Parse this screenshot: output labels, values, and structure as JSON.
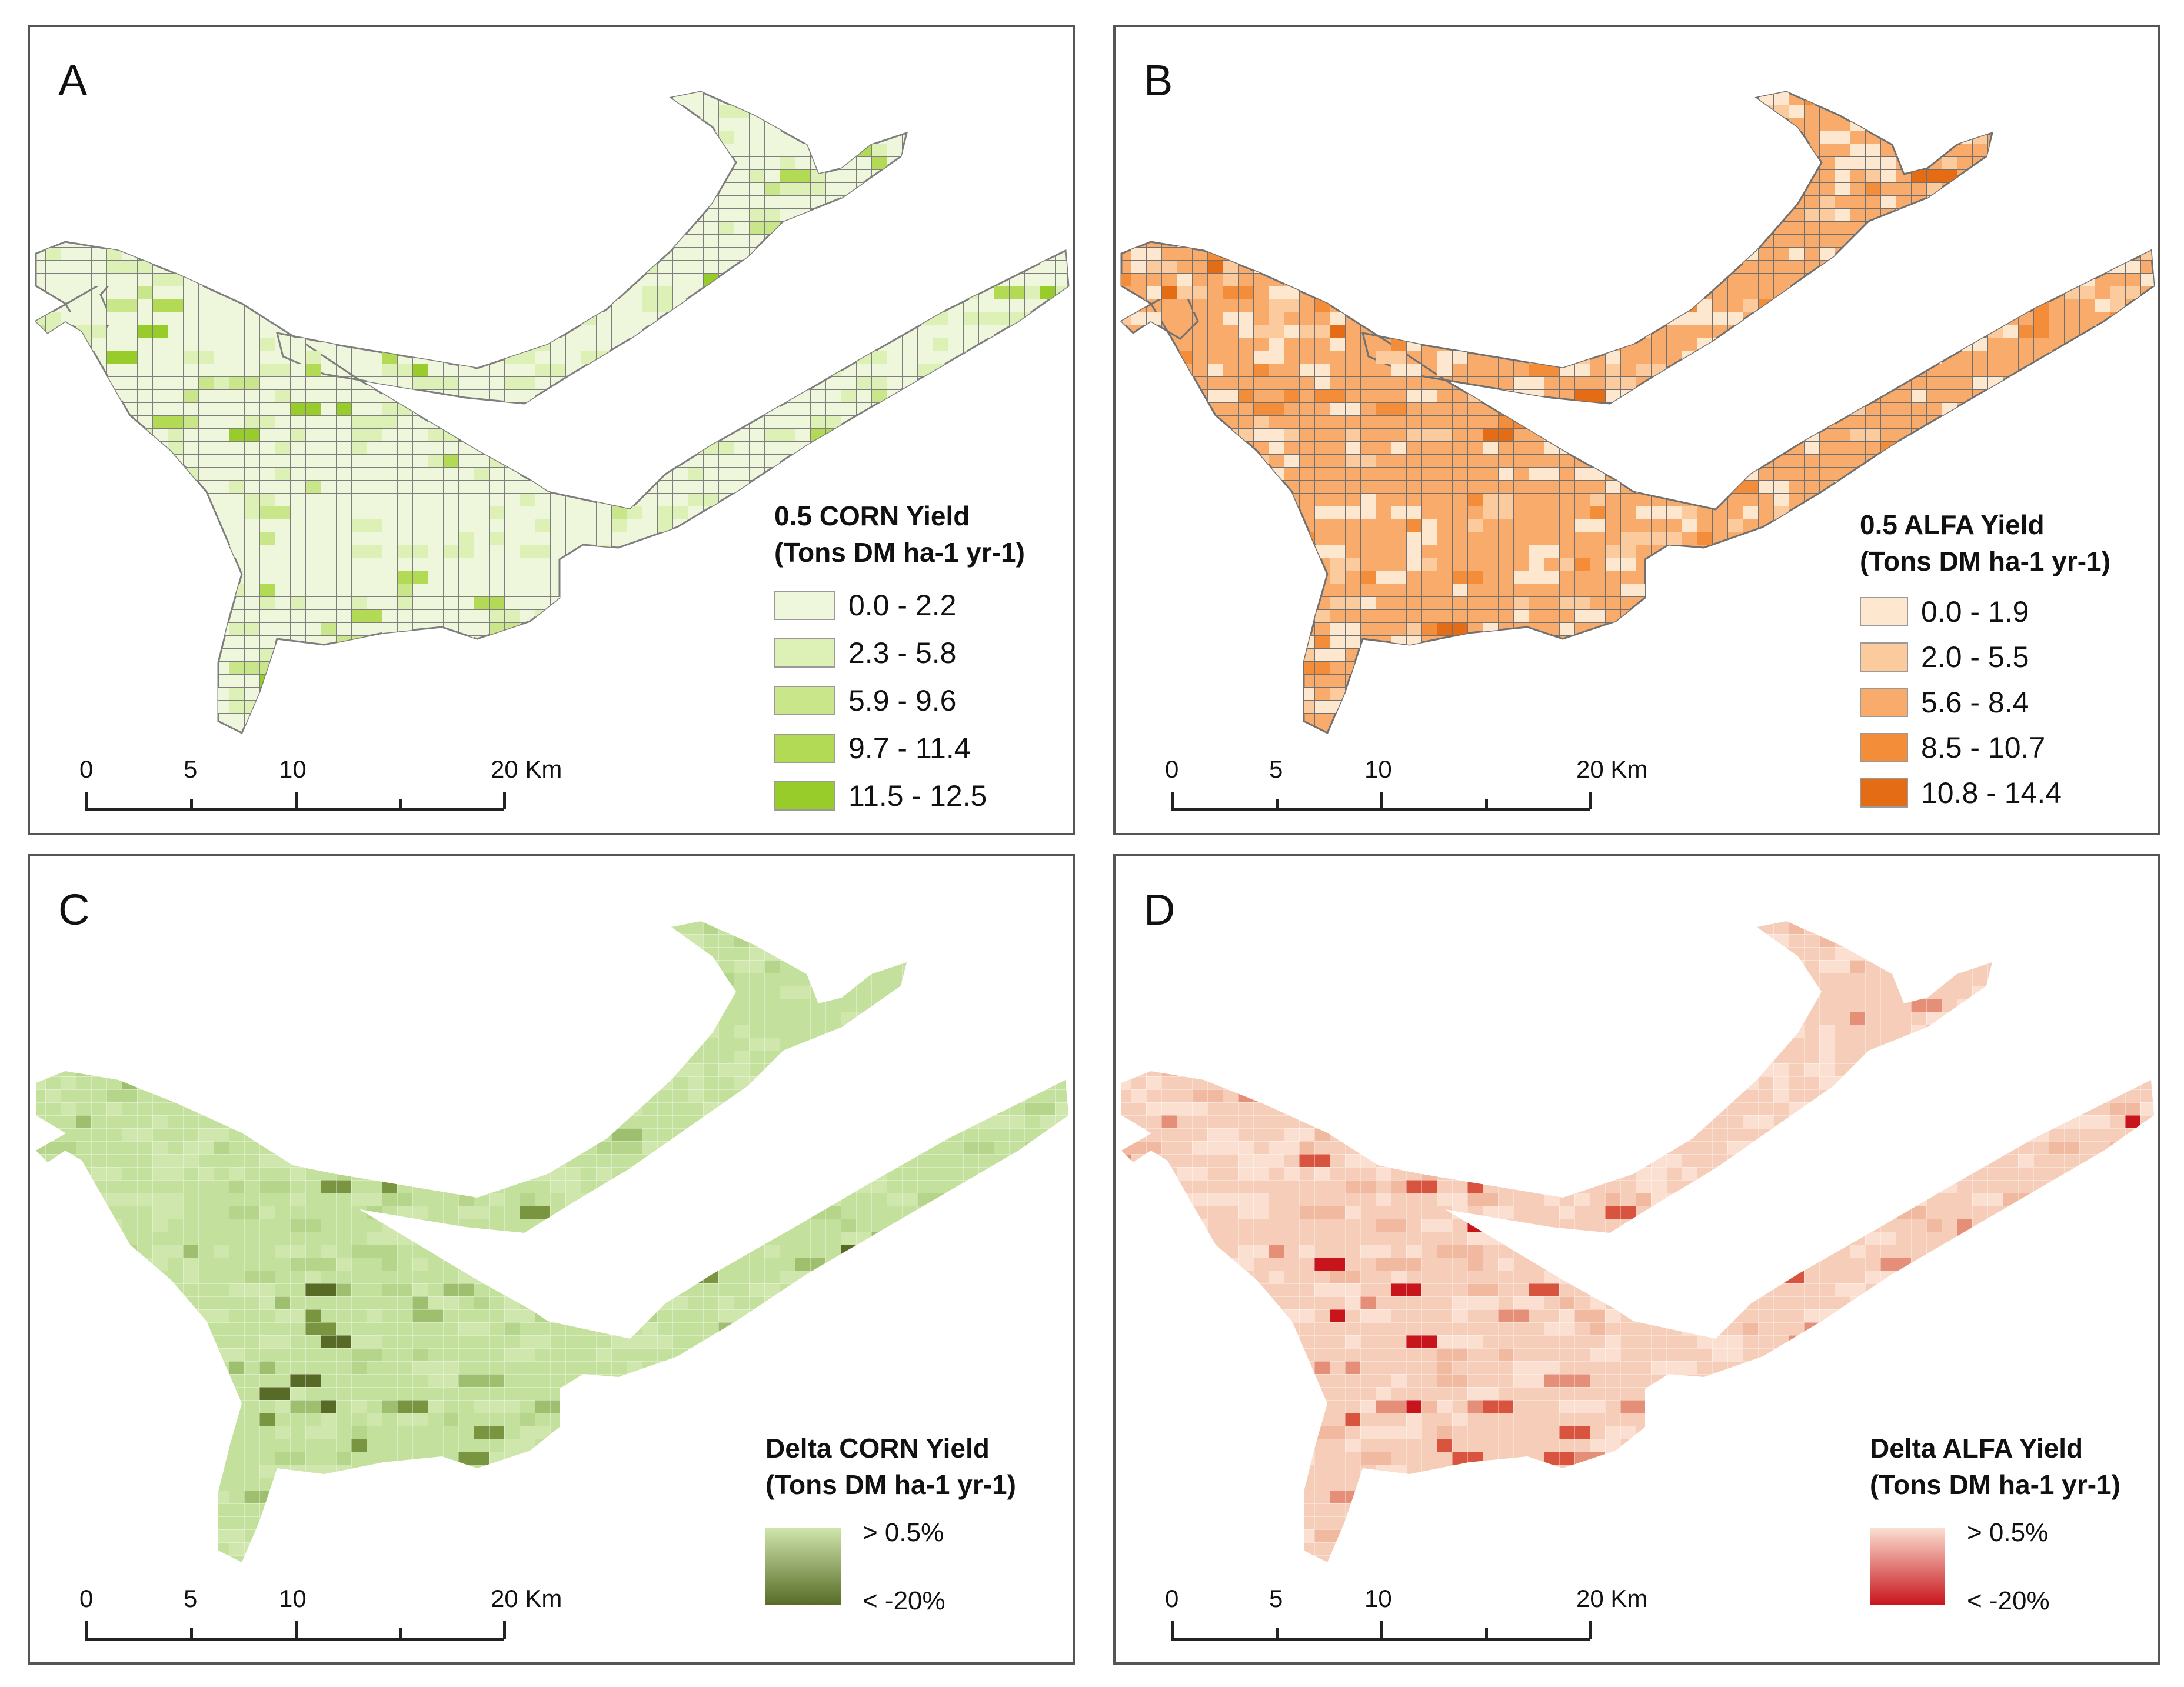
{
  "figure": {
    "panels": [
      {
        "id": "A",
        "letter": "A",
        "legend_title_line1": "0.5 CORN Yield",
        "legend_title_line2": "(Tons DM ha-1 yr-1)",
        "legend_type": "classes",
        "classes": [
          {
            "label": "0.0 - 2.2",
            "color": "#eef7dc"
          },
          {
            "label": "2.3 - 5.8",
            "color": "#ddf0b6"
          },
          {
            "label": "5.9 - 9.6",
            "color": "#c9e68a"
          },
          {
            "label": "9.7 - 11.4",
            "color": "#b2da55"
          },
          {
            "label": "11.5 - 12.5",
            "color": "#97cc2a"
          }
        ],
        "outline_color": "#7e7e7e",
        "scale": {
          "ticks": [
            "0",
            "5",
            "10",
            "20 Km"
          ]
        }
      },
      {
        "id": "B",
        "letter": "B",
        "legend_title_line1": "0.5 ALFA Yield",
        "legend_title_line2": "(Tons DM ha-1 yr-1)",
        "legend_type": "classes",
        "classes": [
          {
            "label": "0.0 - 1.9",
            "color": "#fde7cf"
          },
          {
            "label": "2.0 - 5.5",
            "color": "#fbcb9e"
          },
          {
            "label": "5.6 - 8.4",
            "color": "#f8ab6b"
          },
          {
            "label": "8.5 - 10.7",
            "color": "#f38d3a"
          },
          {
            "label": "10.8 - 14.4",
            "color": "#e46c14"
          }
        ],
        "outline_color": "#707070",
        "scale": {
          "ticks": [
            "0",
            "5",
            "10",
            "20 Km"
          ]
        }
      },
      {
        "id": "C",
        "letter": "C",
        "legend_title_line1": "Delta CORN Yield",
        "legend_title_line2": "(Tons DM ha-1 yr-1)",
        "legend_type": "gradient",
        "gradient": {
          "top_label": "> 0.5%",
          "bottom_label": "< -20%",
          "top_color": "#cfe6ad",
          "bottom_color": "#586b26"
        },
        "scale": {
          "ticks": [
            "0",
            "5",
            "10",
            "20 Km"
          ]
        }
      },
      {
        "id": "D",
        "letter": "D",
        "legend_title_line1": "Delta ALFA Yield",
        "legend_title_line2": "(Tons DM ha-1 yr-1)",
        "legend_type": "gradient",
        "gradient": {
          "top_label": "> 0.5%",
          "bottom_label": "< -20%",
          "top_color": "#fbe0d2",
          "bottom_color": "#c8141b"
        },
        "scale": {
          "ticks": [
            "0",
            "5",
            "10",
            "20 Km"
          ]
        }
      }
    ]
  }
}
